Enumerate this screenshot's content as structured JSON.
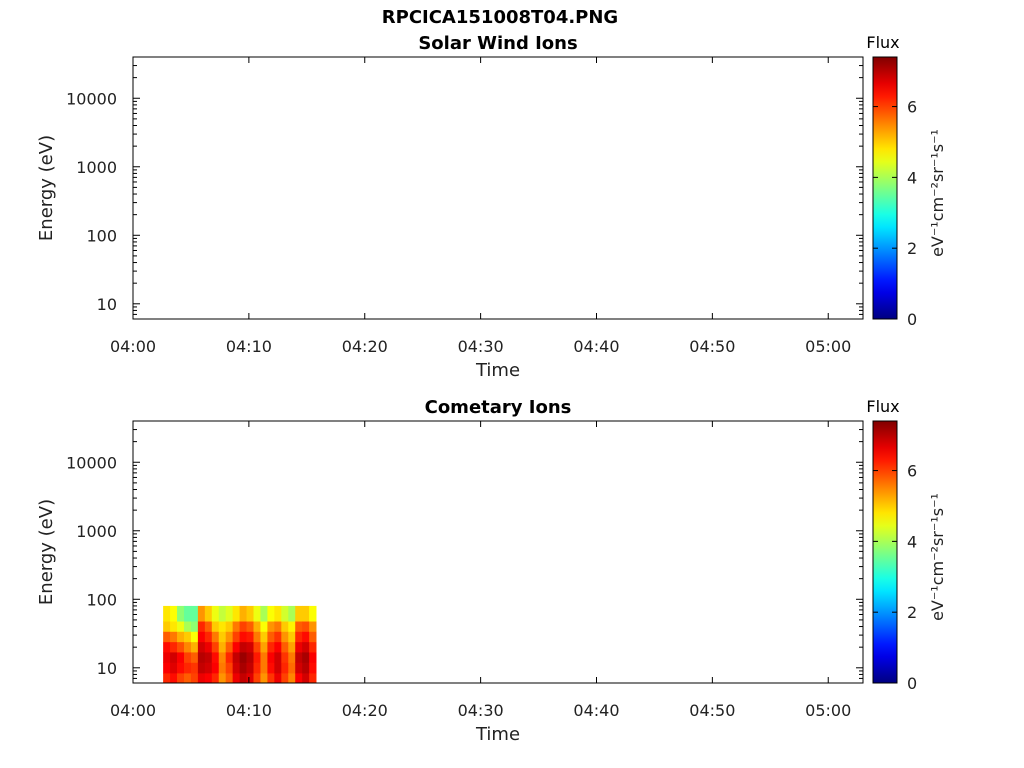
{
  "figure": {
    "title": "RPCICA151008T04.PNG"
  },
  "chart_data": [
    {
      "type": "heatmap",
      "title": "Solar Wind Ions",
      "xlabel": "Time",
      "ylabel": "Energy (eV)",
      "y_scale": "log",
      "x_ticks": [
        "04:00",
        "04:10",
        "04:20",
        "04:30",
        "04:40",
        "04:50",
        "05:00"
      ],
      "xlim": [
        "04:00",
        "05:03"
      ],
      "y_ticks": [
        10,
        100,
        1000,
        10000
      ],
      "ylim": [
        6,
        40000
      ],
      "colorbar": {
        "label": "Flux",
        "unit": "eV⁻¹cm⁻²sr⁻¹s⁻¹",
        "ticks": [
          0,
          2,
          4,
          6
        ],
        "range": [
          0,
          7.4
        ],
        "colormap": "jet"
      },
      "cells": []
    },
    {
      "type": "heatmap",
      "title": "Cometary Ions",
      "xlabel": "Time",
      "ylabel": "Energy (eV)",
      "y_scale": "log",
      "x_ticks": [
        "04:00",
        "04:10",
        "04:20",
        "04:30",
        "04:40",
        "04:50",
        "05:00"
      ],
      "xlim": [
        "04:00",
        "05:03"
      ],
      "y_ticks": [
        10,
        100,
        1000,
        10000
      ],
      "ylim": [
        6,
        40000
      ],
      "colorbar": {
        "label": "Flux",
        "unit": "eV⁻¹cm⁻²sr⁻¹s⁻¹",
        "ticks": [
          0,
          2,
          4,
          6
        ],
        "range": [
          0,
          7.4
        ],
        "colormap": "jet"
      },
      "data_extent": {
        "time_start": "04:02:36",
        "time_end": "04:15:36",
        "energy_min": 6,
        "energy_max": 80
      },
      "flux_range": [
        3.5,
        7.2
      ],
      "cells": [
        {
          "time": "04:02:36",
          "flux": [
            6.2,
            6.5,
            6.6,
            6.4,
            5.8,
            5.0,
            4.8
          ]
        },
        {
          "time": "04:03:12",
          "flux": [
            6.4,
            6.7,
            6.8,
            6.2,
            5.6,
            4.8,
            4.6
          ]
        },
        {
          "time": "04:03:48",
          "flux": [
            6.0,
            6.4,
            6.5,
            5.9,
            5.2,
            4.5,
            3.8
          ]
        },
        {
          "time": "04:04:24",
          "flux": [
            5.8,
            6.2,
            6.0,
            5.5,
            5.0,
            4.0,
            3.5
          ]
        },
        {
          "time": "04:05:00",
          "flux": [
            6.0,
            6.1,
            5.8,
            5.2,
            4.6,
            3.8,
            3.5
          ]
        },
        {
          "time": "04:05:36",
          "flux": [
            6.6,
            6.9,
            7.0,
            6.8,
            6.5,
            6.2,
            5.4
          ]
        },
        {
          "time": "04:06:12",
          "flux": [
            6.5,
            6.8,
            6.9,
            6.6,
            6.2,
            5.8,
            5.0
          ]
        },
        {
          "time": "04:06:48",
          "flux": [
            6.2,
            6.5,
            6.4,
            6.0,
            5.6,
            5.0,
            4.5
          ]
        },
        {
          "time": "04:07:24",
          "flux": [
            5.4,
            5.6,
            5.5,
            5.2,
            5.0,
            4.8,
            4.2
          ]
        },
        {
          "time": "04:08:00",
          "flux": [
            5.8,
            6.0,
            6.2,
            5.8,
            5.4,
            5.0,
            4.4
          ]
        },
        {
          "time": "04:08:36",
          "flux": [
            6.6,
            6.8,
            6.9,
            6.5,
            6.0,
            5.6,
            4.8
          ]
        },
        {
          "time": "04:09:12",
          "flux": [
            6.9,
            7.1,
            7.2,
            6.9,
            6.4,
            6.0,
            5.2
          ]
        },
        {
          "time": "04:09:48",
          "flux": [
            6.7,
            6.9,
            7.0,
            6.8,
            6.3,
            5.8,
            5.0
          ]
        },
        {
          "time": "04:10:24",
          "flux": [
            6.0,
            6.2,
            6.3,
            6.0,
            5.6,
            5.2,
            4.5
          ]
        },
        {
          "time": "04:11:00",
          "flux": [
            5.4,
            5.6,
            5.6,
            5.3,
            5.0,
            4.6,
            4.0
          ]
        },
        {
          "time": "04:11:36",
          "flux": [
            6.1,
            6.4,
            6.5,
            6.2,
            5.8,
            5.4,
            4.6
          ]
        },
        {
          "time": "04:12:12",
          "flux": [
            6.6,
            6.8,
            6.8,
            6.5,
            6.1,
            5.6,
            4.8
          ]
        },
        {
          "time": "04:12:48",
          "flux": [
            6.0,
            6.2,
            6.1,
            5.8,
            5.4,
            5.0,
            4.3
          ]
        },
        {
          "time": "04:13:24",
          "flux": [
            5.5,
            5.7,
            5.6,
            5.3,
            5.0,
            4.7,
            4.0
          ]
        },
        {
          "time": "04:14:00",
          "flux": [
            6.5,
            6.8,
            6.9,
            6.6,
            6.2,
            5.8,
            5.0
          ]
        },
        {
          "time": "04:14:36",
          "flux": [
            6.8,
            7.0,
            7.1,
            6.8,
            6.4,
            5.9,
            5.0
          ]
        },
        {
          "time": "04:15:12",
          "flux": [
            6.2,
            6.4,
            6.5,
            6.2,
            5.8,
            5.4,
            4.6
          ]
        }
      ],
      "cell_duration_min": 0.6,
      "energy_bin_edges": [
        6,
        8.4,
        12,
        17,
        24,
        34,
        48,
        80
      ]
    }
  ]
}
